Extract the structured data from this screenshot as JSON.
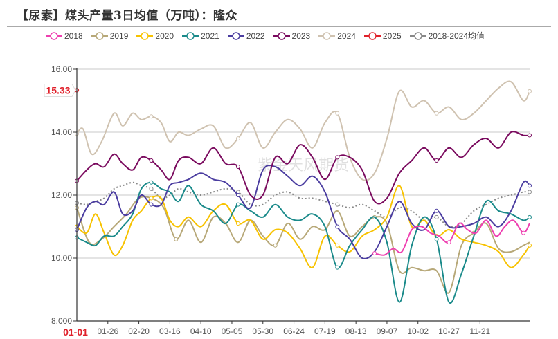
{
  "header": {
    "title": "【尿素】煤头产量3日均值（万吨）：隆众"
  },
  "watermark": "紫金天风期货",
  "chart_data": {
    "type": "line",
    "title": "【尿素】煤头产量3日均值（万吨）：隆众",
    "xlabel": "",
    "ylabel": "",
    "ylim": [
      8,
      16
    ],
    "y_ticks": [
      "8.000",
      "10.00",
      "12.00",
      "14.00",
      "16.00"
    ],
    "x_ticks": [
      "01-01",
      "01-26",
      "02-20",
      "03-16",
      "04-10",
      "05-05",
      "05-30",
      "06-24",
      "07-19",
      "08-13",
      "09-07",
      "10-02",
      "10-27",
      "11-21"
    ],
    "x_domain_days": [
      0,
      365
    ],
    "grid": true,
    "legend_position": "top",
    "highlight": {
      "label": "15.33",
      "x_label": "01-01",
      "color": "#e0202a"
    },
    "series": [
      {
        "name": "2018",
        "color": "#ee3fb0",
        "dotted": false,
        "x": [
          240,
          248,
          255,
          262,
          270,
          278,
          285,
          292,
          300,
          308,
          315,
          322,
          330,
          338,
          345,
          352,
          360,
          365
        ],
        "values": [
          10.15,
          10.1,
          10.3,
          10.2,
          10.9,
          11.0,
          10.8,
          10.7,
          10.5,
          11.1,
          10.9,
          10.8,
          11.2,
          10.7,
          11.0,
          11.2,
          10.8,
          11.1
        ]
      },
      {
        "name": "2019",
        "color": "#b7a878",
        "dotted": false,
        "x": [
          0,
          10,
          20,
          30,
          40,
          50,
          60,
          70,
          80,
          90,
          100,
          110,
          120,
          130,
          140,
          150,
          160,
          170,
          180,
          190,
          200,
          210,
          220,
          230,
          240,
          250,
          260,
          270,
          280,
          290,
          300,
          310,
          320,
          330,
          340,
          350,
          360,
          365
        ],
        "values": [
          11.6,
          10.5,
          10.6,
          11.0,
          11.4,
          11.9,
          11.9,
          11.6,
          10.6,
          11.2,
          10.5,
          11.3,
          11.1,
          10.5,
          11.2,
          10.7,
          10.4,
          11.1,
          10.6,
          11.0,
          10.9,
          11.5,
          10.7,
          11.0,
          11.3,
          11.1,
          9.6,
          9.7,
          9.6,
          9.6,
          8.9,
          10.4,
          10.8,
          11.1,
          10.3,
          10.2,
          10.4,
          10.5
        ]
      },
      {
        "name": "2020",
        "color": "#f7c200",
        "dotted": false,
        "x": [
          0,
          8,
          15,
          22,
          30,
          37,
          45,
          52,
          60,
          68,
          75,
          82,
          90,
          100,
          110,
          120,
          130,
          140,
          150,
          160,
          170,
          180,
          190,
          200,
          210,
          220,
          230,
          240,
          250,
          260,
          270,
          280,
          290,
          300,
          310,
          320,
          330,
          340,
          350,
          360,
          365
        ],
        "values": [
          11.0,
          10.8,
          11.4,
          10.8,
          10.1,
          10.4,
          11.2,
          11.5,
          11.9,
          11.9,
          11.2,
          11.0,
          11.3,
          11.0,
          11.5,
          11.7,
          11.1,
          11.2,
          10.6,
          10.9,
          10.8,
          10.3,
          9.7,
          10.7,
          10.4,
          10.2,
          10.7,
          10.9,
          11.3,
          12.3,
          11.0,
          11.2,
          10.7,
          10.9,
          10.6,
          10.5,
          10.4,
          10.2,
          9.7,
          10.1,
          10.4
        ]
      },
      {
        "name": "2021",
        "color": "#1a8a8a",
        "dotted": false,
        "x": [
          0,
          8,
          15,
          22,
          30,
          37,
          45,
          52,
          60,
          68,
          75,
          82,
          90,
          100,
          110,
          120,
          130,
          140,
          150,
          160,
          170,
          180,
          190,
          200,
          210,
          220,
          230,
          240,
          250,
          260,
          270,
          280,
          290,
          300,
          310,
          320,
          330,
          340,
          350,
          360,
          365
        ],
        "values": [
          10.65,
          10.5,
          10.4,
          10.7,
          10.7,
          11.0,
          11.4,
          12.2,
          12.4,
          12.2,
          12.1,
          11.8,
          12.3,
          11.7,
          11.5,
          11.1,
          11.7,
          11.5,
          11.3,
          11.7,
          11.3,
          11.2,
          11.4,
          11.0,
          9.7,
          10.4,
          10.9,
          11.3,
          10.5,
          8.6,
          10.4,
          11.3,
          10.6,
          8.6,
          9.5,
          10.7,
          11.8,
          11.5,
          11.4,
          11.2,
          11.3
        ]
      },
      {
        "name": "2022",
        "color": "#4b3da0",
        "dotted": false,
        "x": [
          0,
          8,
          15,
          22,
          30,
          37,
          45,
          52,
          60,
          68,
          75,
          82,
          90,
          100,
          110,
          120,
          130,
          140,
          150,
          160,
          170,
          180,
          190,
          200,
          210,
          220,
          230,
          240,
          250,
          260,
          270,
          280,
          290,
          300,
          310,
          320,
          330,
          340,
          350,
          360,
          365
        ],
        "values": [
          10.9,
          11.6,
          11.8,
          11.7,
          12.1,
          11.4,
          11.5,
          12.0,
          11.7,
          11.7,
          12.3,
          12.4,
          12.5,
          12.7,
          12.5,
          12.4,
          12.0,
          11.6,
          12.8,
          12.9,
          12.6,
          12.3,
          12.6,
          12.1,
          11.0,
          10.6,
          10.0,
          10.2,
          11.0,
          11.8,
          11.1,
          10.9,
          11.5,
          11.0,
          11.0,
          11.1,
          11.3,
          11.0,
          11.5,
          12.4,
          12.3
        ]
      },
      {
        "name": "2023",
        "color": "#7a0a5e",
        "dotted": false,
        "x": [
          0,
          8,
          15,
          22,
          30,
          37,
          45,
          52,
          60,
          68,
          75,
          82,
          90,
          100,
          110,
          120,
          130,
          140,
          150,
          160,
          170,
          180,
          190,
          200,
          210,
          220,
          230,
          240,
          250,
          260,
          270,
          280,
          290,
          300,
          310,
          320,
          330,
          340,
          350,
          360,
          365
        ],
        "values": [
          12.45,
          12.8,
          13.0,
          12.9,
          13.3,
          13.0,
          12.8,
          13.2,
          13.1,
          12.8,
          12.5,
          13.1,
          13.2,
          13.0,
          13.5,
          13.0,
          12.9,
          12.0,
          12.0,
          13.2,
          13.0,
          13.6,
          13.2,
          12.5,
          13.2,
          13.2,
          12.8,
          11.8,
          11.9,
          12.7,
          13.1,
          13.5,
          13.1,
          13.5,
          13.2,
          13.6,
          13.8,
          13.5,
          14.0,
          13.9,
          13.9
        ]
      },
      {
        "name": "2024",
        "color": "#cfc2b0",
        "dotted": false,
        "x": [
          0,
          5,
          12,
          20,
          30,
          37,
          45,
          52,
          60,
          68,
          75,
          82,
          90,
          100,
          110,
          120,
          130,
          140,
          150,
          160,
          170,
          180,
          190,
          200,
          210,
          220,
          230,
          240,
          250,
          260,
          270,
          280,
          290,
          300,
          310,
          320,
          330,
          340,
          350,
          360,
          365
        ],
        "values": [
          13.95,
          14.1,
          13.3,
          13.7,
          14.6,
          14.2,
          14.6,
          14.4,
          14.5,
          14.3,
          13.7,
          14.0,
          13.9,
          14.1,
          14.2,
          13.5,
          13.8,
          14.3,
          13.5,
          14.0,
          14.4,
          14.1,
          13.5,
          14.3,
          14.6,
          13.2,
          12.5,
          12.7,
          13.8,
          15.3,
          14.8,
          15.0,
          14.6,
          14.8,
          14.4,
          14.6,
          15.0,
          15.4,
          15.6,
          15.0,
          15.3
        ]
      },
      {
        "name": "2025",
        "color": "#e0202a",
        "dotted": false,
        "x": [
          0
        ],
        "values": [
          15.33
        ]
      },
      {
        "name": "2018-2024均值",
        "color": "#888888",
        "dotted": true,
        "x": [
          0,
          8,
          15,
          22,
          30,
          37,
          45,
          52,
          60,
          68,
          75,
          82,
          90,
          100,
          110,
          120,
          130,
          140,
          150,
          160,
          170,
          180,
          190,
          200,
          210,
          220,
          230,
          240,
          250,
          260,
          270,
          280,
          290,
          300,
          310,
          320,
          330,
          340,
          350,
          360,
          365
        ],
        "values": [
          11.75,
          11.7,
          11.8,
          11.9,
          12.2,
          12.3,
          12.4,
          12.3,
          12.2,
          11.9,
          12.0,
          12.2,
          12.1,
          12.0,
          12.1,
          12.2,
          12.1,
          11.7,
          11.7,
          12.0,
          12.1,
          11.9,
          11.9,
          11.8,
          11.7,
          11.6,
          11.7,
          11.5,
          11.3,
          11.6,
          11.5,
          11.2,
          11.3,
          11.0,
          11.1,
          11.5,
          11.7,
          11.9,
          12.0,
          12.1,
          12.1
        ]
      }
    ]
  }
}
